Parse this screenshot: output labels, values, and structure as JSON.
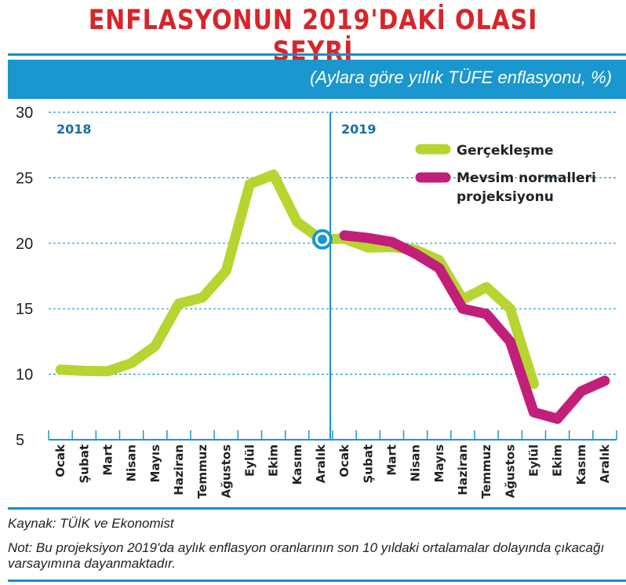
{
  "header": {
    "title": "ENFLASYONUN 2019'DAKİ OLASI SEYRİ",
    "subtitle": "(Aylara göre yıllık TÜFE enflasyonu, %)"
  },
  "colors": {
    "title": "#d6252b",
    "accent": "#1a97cf",
    "actual": "#b6d531",
    "projection": "#c11f7a"
  },
  "chart_data": {
    "type": "line",
    "year_labels": [
      "2018",
      "2019"
    ],
    "categories": [
      "Ocak",
      "Şubat",
      "Mart",
      "Nisan",
      "Mayıs",
      "Haziran",
      "Temmuz",
      "Ağustos",
      "Eylül",
      "Ekim",
      "Kasım",
      "Aralık",
      "Ocak",
      "Şubat",
      "Mart",
      "Nisan",
      "Mayıs",
      "Haziran",
      "Temmuz",
      "Ağustos",
      "Eylül",
      "Ekim",
      "Kasım",
      "Aralık"
    ],
    "yticks": [
      5,
      10,
      15,
      20,
      25,
      30
    ],
    "ylim": [
      5,
      30
    ],
    "grid": true,
    "legend_position": "top-right",
    "series": [
      {
        "name": "Gerçekleşme",
        "values": [
          10.35,
          10.26,
          10.23,
          10.85,
          12.15,
          15.39,
          15.85,
          17.9,
          24.52,
          25.24,
          21.62,
          20.3,
          20.35,
          19.67,
          19.71,
          19.5,
          18.71,
          15.72,
          16.65,
          15.01,
          9.26,
          null,
          null,
          null
        ]
      },
      {
        "name": "Mevsim normalleri projeksiyonu",
        "values": [
          null,
          null,
          null,
          null,
          null,
          null,
          null,
          null,
          null,
          null,
          null,
          null,
          20.6,
          20.4,
          20.1,
          19.2,
          18.1,
          15.0,
          14.6,
          12.5,
          7.1,
          6.6,
          8.7,
          9.5
        ]
      }
    ]
  },
  "footer": {
    "source": "Kaynak: TÜİK ve Ekonomist",
    "note": "Not: Bu projeksiyon 2019'da aylık enflasyon oranlarının son 10 yıldaki ortalamalar dolayında çıkacağı varsayımına dayanmaktadır."
  }
}
